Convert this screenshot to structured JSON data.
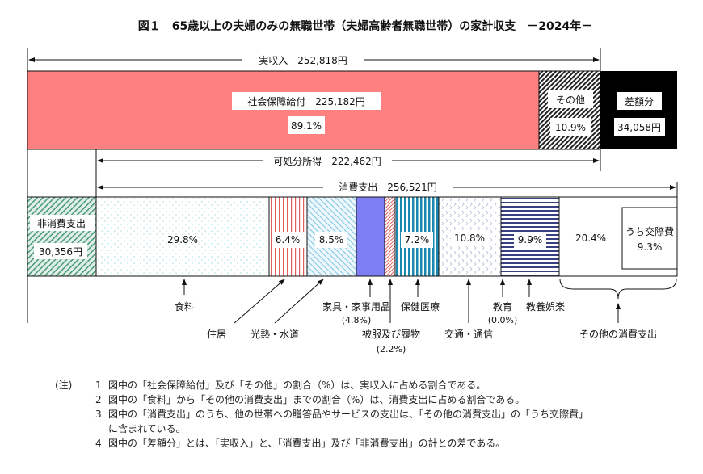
{
  "title": "図１　65歳以上の夫婦のみの無職世帯（夫婦高齢者無職世帯）の家計収支　－2024年－",
  "income": {
    "label": "実収入　252,818円",
    "social": {
      "label": "社会保障給付　225,182円",
      "pct": "89.1%",
      "color": "#ff8080"
    },
    "other": {
      "label": "その他",
      "pct": "10.9%"
    },
    "deficit": {
      "label": "差額分",
      "value": "34,058円"
    }
  },
  "disposable": "可処分所得　222,462円",
  "consumption": "消費支出　256,521円",
  "nonconsumption": {
    "label": "非消費支出",
    "value": "30,356円"
  },
  "categories": [
    {
      "name": "食料",
      "pct": "29.8%"
    },
    {
      "name": "住居",
      "pct": "6.4%"
    },
    {
      "name": "光熱・水道",
      "pct": "8.5%"
    },
    {
      "name": "家具・家事用品",
      "pct": "(4.8%)"
    },
    {
      "name": "被服及び履物",
      "pct": "(2.2%)"
    },
    {
      "name": "保健医療",
      "pct": "7.2%"
    },
    {
      "name": "交通・通信",
      "pct": "10.8%"
    },
    {
      "name": "教育",
      "pct": "(0.0%)"
    },
    {
      "name": "教養娯楽",
      "pct": "9.9%"
    },
    {
      "name": "その他の消費支出",
      "pct": "20.4%",
      "sub_label": "うち交際費",
      "sub_pct": "9.3%"
    }
  ],
  "notes": {
    "head": "(注)",
    "items": [
      {
        "n": "1",
        "text": "図中の「社会保障給付」及び「その他」の割合（%）は、実収入に占める割合である。"
      },
      {
        "n": "2",
        "text": "図中の「食料」から「その他の消費支出」までの割合（%）は、消費支出に占める割合である。"
      },
      {
        "n": "3",
        "text": "図中の「消費支出」のうち、他の世帯への贈答品やサービスの支出は、「その他の消費支出」の「うち交際費」"
      },
      {
        "n": "",
        "text": "に含まれている。"
      },
      {
        "n": "4",
        "text": "図中の「差額分」とは、「実収入」と、「消費支出」及び「非消費支出」の計との差である。"
      }
    ]
  }
}
